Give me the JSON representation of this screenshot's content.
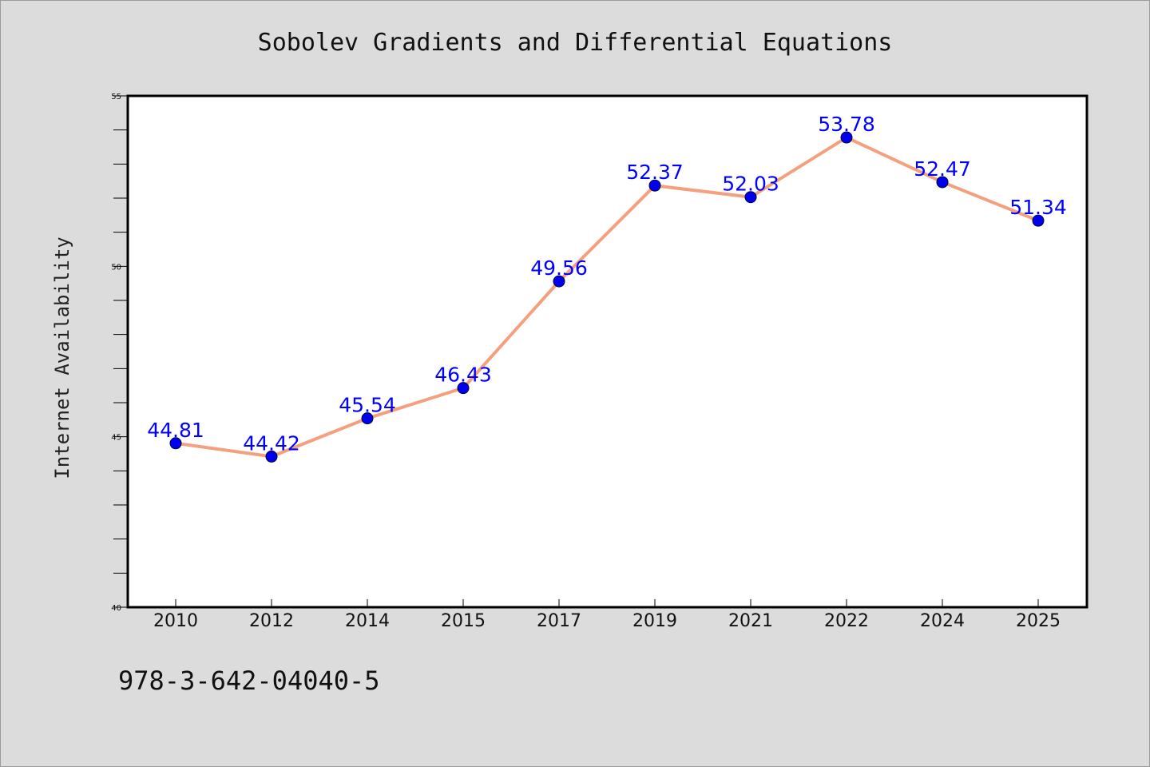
{
  "chart_data": {
    "type": "line",
    "title": "Sobolev Gradients and Differential Equations",
    "xlabel": "",
    "ylabel": "Internet Availability",
    "categories": [
      "2010",
      "2012",
      "2014",
      "2015",
      "2017",
      "2019",
      "2021",
      "2022",
      "2024",
      "2025"
    ],
    "series": [
      {
        "values": [
          44.81,
          44.42,
          45.54,
          46.43,
          49.56,
          52.37,
          52.03,
          53.78,
          52.47,
          51.34
        ],
        "data_labels": [
          "44.81",
          "44.42",
          "45.54",
          "46.43",
          "49.56",
          "52.37",
          "52.03",
          "53.78",
          "52.47",
          "51.34"
        ],
        "line_color": "#f4a07e",
        "marker_color": "#0000ee",
        "label_color": "#0000ff"
      }
    ],
    "ylim": [
      40,
      55
    ],
    "yticks": [
      "40",
      "45",
      "50",
      "55"
    ],
    "grid": false,
    "legend": "none"
  },
  "footer": {
    "isbn": "978-3-642-04040-5"
  },
  "colors": {
    "background": "#dcdcdc",
    "plot_background": "#ffffff"
  }
}
